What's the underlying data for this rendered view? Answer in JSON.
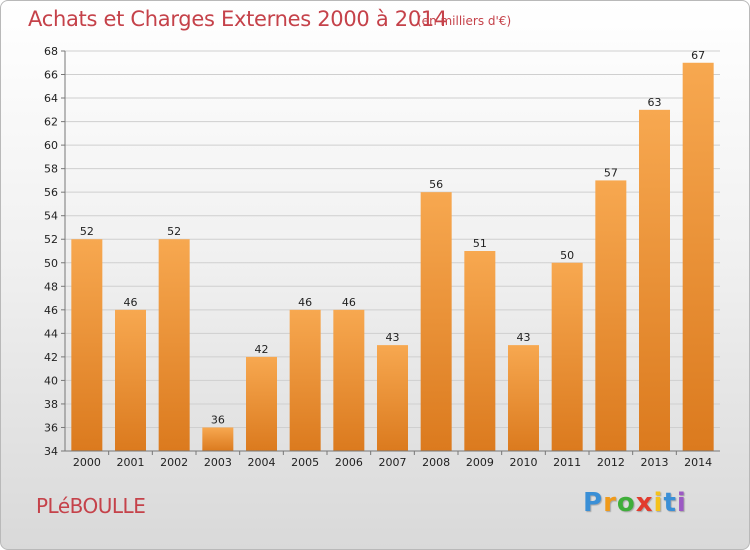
{
  "header": {
    "title": "Achats et Charges Externes 2000 à 2014",
    "subtitle": "(en milliers d'€)"
  },
  "footer": {
    "place": "PLéBOULLE",
    "logo_letters": [
      "P",
      "r",
      "o",
      "x",
      "i",
      "t",
      "i"
    ],
    "logo_colors": [
      "#3a8fd6",
      "#f09a1a",
      "#3fae3a",
      "#e23b2e",
      "#f5c21b",
      "#3a8fd6",
      "#9c59c4"
    ]
  },
  "colors": {
    "bar_light": "#f7a850",
    "bar_dark": "#db7a1e",
    "grid": "#cfcfcf",
    "title": "#c5424a"
  },
  "chart_data": {
    "type": "bar",
    "title": "Achats et Charges Externes 2000 à 2014",
    "subtitle": "(en milliers d'€)",
    "categories": [
      "2000",
      "2001",
      "2002",
      "2003",
      "2004",
      "2005",
      "2006",
      "2007",
      "2008",
      "2009",
      "2010",
      "2011",
      "2012",
      "2013",
      "2014"
    ],
    "values": [
      52,
      46,
      52,
      36,
      42,
      46,
      46,
      43,
      56,
      51,
      43,
      50,
      57,
      63,
      67
    ],
    "ylim": [
      34,
      68
    ],
    "yticks": [
      "34",
      "36",
      "38",
      "40",
      "42",
      "44",
      "46",
      "48",
      "50",
      "52",
      "54",
      "56",
      "58",
      "60",
      "62",
      "64",
      "66",
      "68"
    ],
    "grid": true,
    "data_labels": true
  }
}
